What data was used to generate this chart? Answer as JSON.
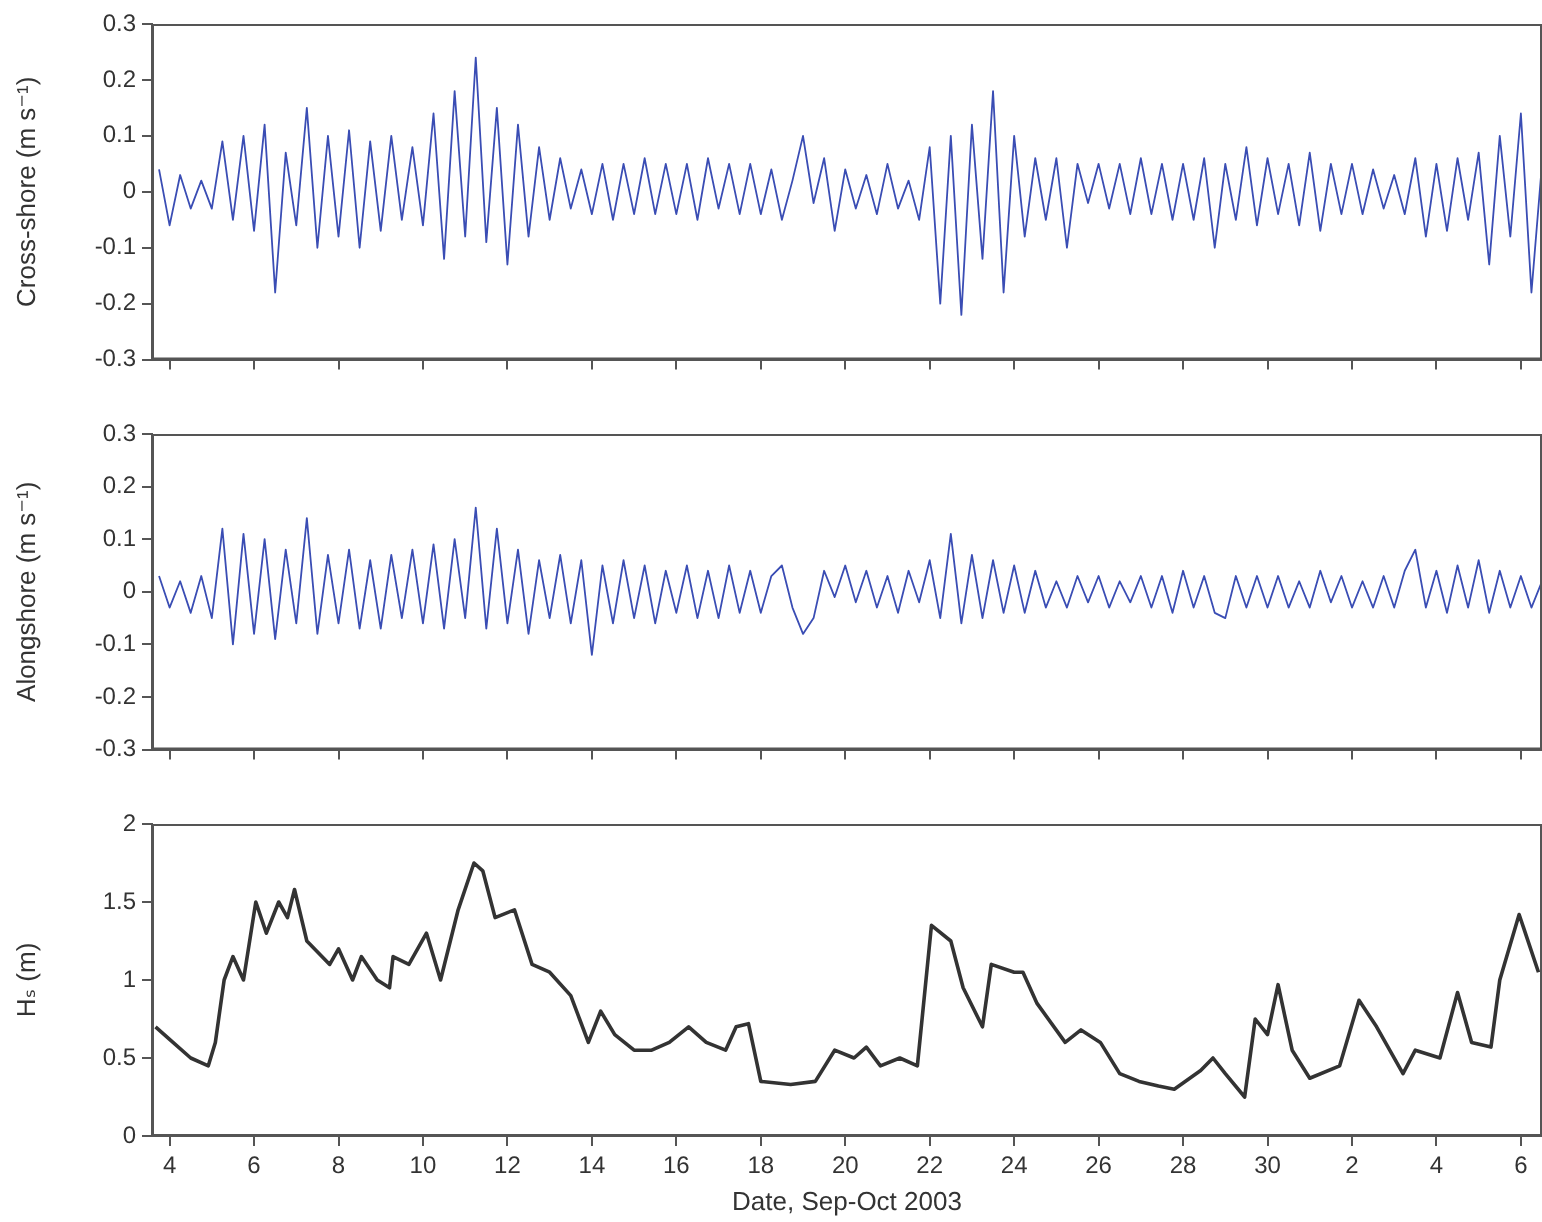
{
  "chart_data": [
    {
      "type": "line",
      "ylabel": "Cross-shore (m s⁻¹)",
      "tick_labels": "y",
      "grid": false,
      "xlim": [
        "2003-09-03T14:00",
        "2003-10-06T12:00"
      ],
      "xticks": [
        {
          "value": "2003-09-04",
          "label": null
        },
        {
          "value": "2003-09-06",
          "label": null
        },
        {
          "value": "2003-09-08",
          "label": null
        },
        {
          "value": "2003-09-10",
          "label": null
        },
        {
          "value": "2003-09-12",
          "label": null
        },
        {
          "value": "2003-09-14",
          "label": null
        },
        {
          "value": "2003-09-16",
          "label": null
        },
        {
          "value": "2003-09-18",
          "label": null
        },
        {
          "value": "2003-09-20",
          "label": null
        },
        {
          "value": "2003-09-22",
          "label": null
        },
        {
          "value": "2003-09-24",
          "label": null
        },
        {
          "value": "2003-09-26",
          "label": null
        },
        {
          "value": "2003-09-28",
          "label": null
        },
        {
          "value": "2003-09-30",
          "label": null
        },
        {
          "value": "2003-10-02",
          "label": null
        },
        {
          "value": "2003-10-04",
          "label": null
        },
        {
          "value": "2003-10-06",
          "label": null
        }
      ],
      "ylim": [
        -0.3,
        0.3
      ],
      "yticks": [
        -0.3,
        -0.2,
        -0.1,
        0,
        0.1,
        0.2,
        0.3
      ],
      "x": [
        "2003-09-03T18:00",
        "2003-09-04T00:00",
        "2003-09-04T06:00",
        "2003-09-04T12:00",
        "2003-09-04T18:00",
        "2003-09-05T00:00",
        "2003-09-05T06:00",
        "2003-09-05T12:00",
        "2003-09-05T18:00",
        "2003-09-06T00:00",
        "2003-09-06T06:00",
        "2003-09-06T12:00",
        "2003-09-06T18:00",
        "2003-09-07T00:00",
        "2003-09-07T06:00",
        "2003-09-07T12:00",
        "2003-09-07T18:00",
        "2003-09-08T00:00",
        "2003-09-08T06:00",
        "2003-09-08T12:00",
        "2003-09-08T18:00",
        "2003-09-09T00:00",
        "2003-09-09T06:00",
        "2003-09-09T12:00",
        "2003-09-09T18:00",
        "2003-09-10T00:00",
        "2003-09-10T06:00",
        "2003-09-10T12:00",
        "2003-09-10T18:00",
        "2003-09-11T00:00",
        "2003-09-11T06:00",
        "2003-09-11T12:00",
        "2003-09-11T18:00",
        "2003-09-12T00:00",
        "2003-09-12T06:00",
        "2003-09-12T12:00",
        "2003-09-12T18:00",
        "2003-09-13T00:00",
        "2003-09-13T06:00",
        "2003-09-13T12:00",
        "2003-09-13T18:00",
        "2003-09-14T00:00",
        "2003-09-14T06:00",
        "2003-09-14T12:00",
        "2003-09-14T18:00",
        "2003-09-15T00:00",
        "2003-09-15T06:00",
        "2003-09-15T12:00",
        "2003-09-15T18:00",
        "2003-09-16T00:00",
        "2003-09-16T06:00",
        "2003-09-16T12:00",
        "2003-09-16T18:00",
        "2003-09-17T00:00",
        "2003-09-17T06:00",
        "2003-09-17T12:00",
        "2003-09-17T18:00",
        "2003-09-18T00:00",
        "2003-09-18T06:00",
        "2003-09-18T12:00",
        "2003-09-18T18:00",
        "2003-09-19T00:00",
        "2003-09-19T06:00",
        "2003-09-19T12:00",
        "2003-09-19T18:00",
        "2003-09-20T00:00",
        "2003-09-20T06:00",
        "2003-09-20T12:00",
        "2003-09-20T18:00",
        "2003-09-21T00:00",
        "2003-09-21T06:00",
        "2003-09-21T12:00",
        "2003-09-21T18:00",
        "2003-09-22T00:00",
        "2003-09-22T06:00",
        "2003-09-22T12:00",
        "2003-09-22T18:00",
        "2003-09-23T00:00",
        "2003-09-23T06:00",
        "2003-09-23T12:00",
        "2003-09-23T18:00",
        "2003-09-24T00:00",
        "2003-09-24T06:00",
        "2003-09-24T12:00",
        "2003-09-24T18:00",
        "2003-09-25T00:00",
        "2003-09-25T06:00",
        "2003-09-25T12:00",
        "2003-09-25T18:00",
        "2003-09-26T00:00",
        "2003-09-26T06:00",
        "2003-09-26T12:00",
        "2003-09-26T18:00",
        "2003-09-27T00:00",
        "2003-09-27T06:00",
        "2003-09-27T12:00",
        "2003-09-27T18:00",
        "2003-09-28T00:00",
        "2003-09-28T06:00",
        "2003-09-28T12:00",
        "2003-09-28T18:00",
        "2003-09-29T00:00",
        "2003-09-29T06:00",
        "2003-09-29T12:00",
        "2003-09-29T18:00",
        "2003-09-30T00:00",
        "2003-09-30T06:00",
        "2003-09-30T12:00",
        "2003-09-30T18:00",
        "2003-10-01T00:00",
        "2003-10-01T06:00",
        "2003-10-01T12:00",
        "2003-10-01T18:00",
        "2003-10-02T00:00",
        "2003-10-02T06:00",
        "2003-10-02T12:00",
        "2003-10-02T18:00",
        "2003-10-03T00:00",
        "2003-10-03T06:00",
        "2003-10-03T12:00",
        "2003-10-03T18:00",
        "2003-10-04T00:00",
        "2003-10-04T06:00",
        "2003-10-04T12:00",
        "2003-10-04T18:00",
        "2003-10-05T00:00",
        "2003-10-05T06:00",
        "2003-10-05T12:00",
        "2003-10-05T18:00",
        "2003-10-06T00:00",
        "2003-10-06T06:00",
        "2003-10-06T12:00"
      ],
      "series": [
        {
          "color": "#3a4db4",
          "values": [
            0.04,
            -0.06,
            0.03,
            -0.03,
            0.02,
            -0.03,
            0.09,
            -0.05,
            0.1,
            -0.07,
            0.12,
            -0.18,
            0.07,
            -0.06,
            0.15,
            -0.1,
            0.1,
            -0.08,
            0.11,
            -0.1,
            0.09,
            -0.07,
            0.1,
            -0.05,
            0.08,
            -0.06,
            0.14,
            -0.12,
            0.18,
            -0.08,
            0.24,
            -0.09,
            0.15,
            -0.13,
            0.12,
            -0.08,
            0.08,
            -0.05,
            0.06,
            -0.03,
            0.04,
            -0.04,
            0.05,
            -0.05,
            0.05,
            -0.04,
            0.06,
            -0.04,
            0.05,
            -0.04,
            0.05,
            -0.05,
            0.06,
            -0.03,
            0.05,
            -0.04,
            0.05,
            -0.04,
            0.04,
            -0.05,
            0.02,
            0.1,
            -0.02,
            0.06,
            -0.07,
            0.04,
            -0.03,
            0.03,
            -0.04,
            0.05,
            -0.03,
            0.02,
            -0.05,
            0.08,
            -0.2,
            0.1,
            -0.22,
            0.12,
            -0.12,
            0.18,
            -0.18,
            0.1,
            -0.08,
            0.06,
            -0.05,
            0.06,
            -0.1,
            0.05,
            -0.02,
            0.05,
            -0.03,
            0.05,
            -0.04,
            0.06,
            -0.04,
            0.05,
            -0.05,
            0.05,
            -0.05,
            0.06,
            -0.1,
            0.05,
            -0.05,
            0.08,
            -0.06,
            0.06,
            -0.04,
            0.05,
            -0.06,
            0.07,
            -0.07,
            0.05,
            -0.04,
            0.05,
            -0.04,
            0.04,
            -0.03,
            0.03,
            -0.04,
            0.06,
            -0.08,
            0.05,
            -0.07,
            0.06,
            -0.05,
            0.07,
            -0.13,
            0.1,
            -0.08,
            0.14,
            -0.18,
            0.05
          ]
        }
      ]
    },
    {
      "type": "line",
      "ylabel": "Alongshore (m s⁻¹)",
      "tick_labels": "y",
      "grid": false,
      "xlim": [
        "2003-09-03T14:00",
        "2003-10-06T12:00"
      ],
      "xticks": [
        {
          "value": "2003-09-04",
          "label": null
        },
        {
          "value": "2003-09-06",
          "label": null
        },
        {
          "value": "2003-09-08",
          "label": null
        },
        {
          "value": "2003-09-10",
          "label": null
        },
        {
          "value": "2003-09-12",
          "label": null
        },
        {
          "value": "2003-09-14",
          "label": null
        },
        {
          "value": "2003-09-16",
          "label": null
        },
        {
          "value": "2003-09-18",
          "label": null
        },
        {
          "value": "2003-09-20",
          "label": null
        },
        {
          "value": "2003-09-22",
          "label": null
        },
        {
          "value": "2003-09-24",
          "label": null
        },
        {
          "value": "2003-09-26",
          "label": null
        },
        {
          "value": "2003-09-28",
          "label": null
        },
        {
          "value": "2003-09-30",
          "label": null
        },
        {
          "value": "2003-10-02",
          "label": null
        },
        {
          "value": "2003-10-04",
          "label": null
        },
        {
          "value": "2003-10-06",
          "label": null
        }
      ],
      "ylim": [
        -0.3,
        0.3
      ],
      "yticks": [
        -0.3,
        -0.2,
        -0.1,
        0,
        0.1,
        0.2,
        0.3
      ],
      "x": [
        "2003-09-03T18:00",
        "2003-09-04T00:00",
        "2003-09-04T06:00",
        "2003-09-04T12:00",
        "2003-09-04T18:00",
        "2003-09-05T00:00",
        "2003-09-05T06:00",
        "2003-09-05T12:00",
        "2003-09-05T18:00",
        "2003-09-06T00:00",
        "2003-09-06T06:00",
        "2003-09-06T12:00",
        "2003-09-06T18:00",
        "2003-09-07T00:00",
        "2003-09-07T06:00",
        "2003-09-07T12:00",
        "2003-09-07T18:00",
        "2003-09-08T00:00",
        "2003-09-08T06:00",
        "2003-09-08T12:00",
        "2003-09-08T18:00",
        "2003-09-09T00:00",
        "2003-09-09T06:00",
        "2003-09-09T12:00",
        "2003-09-09T18:00",
        "2003-09-10T00:00",
        "2003-09-10T06:00",
        "2003-09-10T12:00",
        "2003-09-10T18:00",
        "2003-09-11T00:00",
        "2003-09-11T06:00",
        "2003-09-11T12:00",
        "2003-09-11T18:00",
        "2003-09-12T00:00",
        "2003-09-12T06:00",
        "2003-09-12T12:00",
        "2003-09-12T18:00",
        "2003-09-13T00:00",
        "2003-09-13T06:00",
        "2003-09-13T12:00",
        "2003-09-13T18:00",
        "2003-09-14T00:00",
        "2003-09-14T06:00",
        "2003-09-14T12:00",
        "2003-09-14T18:00",
        "2003-09-15T00:00",
        "2003-09-15T06:00",
        "2003-09-15T12:00",
        "2003-09-15T18:00",
        "2003-09-16T00:00",
        "2003-09-16T06:00",
        "2003-09-16T12:00",
        "2003-09-16T18:00",
        "2003-09-17T00:00",
        "2003-09-17T06:00",
        "2003-09-17T12:00",
        "2003-09-17T18:00",
        "2003-09-18T00:00",
        "2003-09-18T06:00",
        "2003-09-18T12:00",
        "2003-09-18T18:00",
        "2003-09-19T00:00",
        "2003-09-19T06:00",
        "2003-09-19T12:00",
        "2003-09-19T18:00",
        "2003-09-20T00:00",
        "2003-09-20T06:00",
        "2003-09-20T12:00",
        "2003-09-20T18:00",
        "2003-09-21T00:00",
        "2003-09-21T06:00",
        "2003-09-21T12:00",
        "2003-09-21T18:00",
        "2003-09-22T00:00",
        "2003-09-22T06:00",
        "2003-09-22T12:00",
        "2003-09-22T18:00",
        "2003-09-23T00:00",
        "2003-09-23T06:00",
        "2003-09-23T12:00",
        "2003-09-23T18:00",
        "2003-09-24T00:00",
        "2003-09-24T06:00",
        "2003-09-24T12:00",
        "2003-09-24T18:00",
        "2003-09-25T00:00",
        "2003-09-25T06:00",
        "2003-09-25T12:00",
        "2003-09-25T18:00",
        "2003-09-26T00:00",
        "2003-09-26T06:00",
        "2003-09-26T12:00",
        "2003-09-26T18:00",
        "2003-09-27T00:00",
        "2003-09-27T06:00",
        "2003-09-27T12:00",
        "2003-09-27T18:00",
        "2003-09-28T00:00",
        "2003-09-28T06:00",
        "2003-09-28T12:00",
        "2003-09-28T18:00",
        "2003-09-29T00:00",
        "2003-09-29T06:00",
        "2003-09-29T12:00",
        "2003-09-29T18:00",
        "2003-09-30T00:00",
        "2003-09-30T06:00",
        "2003-09-30T12:00",
        "2003-09-30T18:00",
        "2003-10-01T00:00",
        "2003-10-01T06:00",
        "2003-10-01T12:00",
        "2003-10-01T18:00",
        "2003-10-02T00:00",
        "2003-10-02T06:00",
        "2003-10-02T12:00",
        "2003-10-02T18:00",
        "2003-10-03T00:00",
        "2003-10-03T06:00",
        "2003-10-03T12:00",
        "2003-10-03T18:00",
        "2003-10-04T00:00",
        "2003-10-04T06:00",
        "2003-10-04T12:00",
        "2003-10-04T18:00",
        "2003-10-05T00:00",
        "2003-10-05T06:00",
        "2003-10-05T12:00",
        "2003-10-05T18:00",
        "2003-10-06T00:00",
        "2003-10-06T06:00",
        "2003-10-06T12:00"
      ],
      "series": [
        {
          "color": "#3a4db4",
          "values": [
            0.03,
            -0.03,
            0.02,
            -0.04,
            0.03,
            -0.05,
            0.12,
            -0.1,
            0.11,
            -0.08,
            0.1,
            -0.09,
            0.08,
            -0.06,
            0.14,
            -0.08,
            0.07,
            -0.06,
            0.08,
            -0.07,
            0.06,
            -0.07,
            0.07,
            -0.05,
            0.08,
            -0.06,
            0.09,
            -0.07,
            0.1,
            -0.05,
            0.16,
            -0.07,
            0.12,
            -0.06,
            0.08,
            -0.08,
            0.06,
            -0.05,
            0.07,
            -0.06,
            0.06,
            -0.12,
            0.05,
            -0.06,
            0.06,
            -0.05,
            0.05,
            -0.06,
            0.04,
            -0.04,
            0.05,
            -0.05,
            0.04,
            -0.05,
            0.05,
            -0.04,
            0.04,
            -0.04,
            0.03,
            0.05,
            -0.03,
            -0.08,
            -0.05,
            0.04,
            -0.01,
            0.05,
            -0.02,
            0.04,
            -0.03,
            0.03,
            -0.04,
            0.04,
            -0.02,
            0.06,
            -0.05,
            0.11,
            -0.06,
            0.07,
            -0.05,
            0.06,
            -0.04,
            0.05,
            -0.04,
            0.04,
            -0.03,
            0.02,
            -0.03,
            0.03,
            -0.02,
            0.03,
            -0.03,
            0.02,
            -0.02,
            0.03,
            -0.03,
            0.03,
            -0.04,
            0.04,
            -0.03,
            0.03,
            -0.04,
            -0.05,
            0.03,
            -0.03,
            0.03,
            -0.03,
            0.03,
            -0.03,
            0.02,
            -0.03,
            0.04,
            -0.02,
            0.03,
            -0.03,
            0.02,
            -0.03,
            0.03,
            -0.03,
            0.04,
            0.08,
            -0.03,
            0.04,
            -0.04,
            0.05,
            -0.03,
            0.06,
            -0.04,
            0.04,
            -0.03,
            0.03,
            -0.03,
            0.02
          ]
        }
      ]
    },
    {
      "type": "line",
      "ylabel": "Hₛ (m)",
      "xlabel": "Date, Sep-Oct 2003",
      "grid": false,
      "xlim": [
        "2003-09-03T14:00",
        "2003-10-06T12:00"
      ],
      "xticks": [
        {
          "value": "2003-09-04",
          "label": "4"
        },
        {
          "value": "2003-09-06",
          "label": "6"
        },
        {
          "value": "2003-09-08",
          "label": "8"
        },
        {
          "value": "2003-09-10",
          "label": "10"
        },
        {
          "value": "2003-09-12",
          "label": "12"
        },
        {
          "value": "2003-09-14",
          "label": "14"
        },
        {
          "value": "2003-09-16",
          "label": "16"
        },
        {
          "value": "2003-09-18",
          "label": "18"
        },
        {
          "value": "2003-09-20",
          "label": "20"
        },
        {
          "value": "2003-09-22",
          "label": "22"
        },
        {
          "value": "2003-09-24",
          "label": "24"
        },
        {
          "value": "2003-09-26",
          "label": "26"
        },
        {
          "value": "2003-09-28",
          "label": "28"
        },
        {
          "value": "2003-09-30",
          "label": "30"
        },
        {
          "value": "2003-10-02",
          "label": "2"
        },
        {
          "value": "2003-10-04",
          "label": "4"
        },
        {
          "value": "2003-10-06",
          "label": "6"
        }
      ],
      "ylim": [
        0,
        2
      ],
      "yticks": [
        0,
        0.5,
        1,
        1.5,
        2
      ],
      "x": [
        "2003-09-03T16:00",
        "2003-09-04T00:00",
        "2003-09-04T12:00",
        "2003-09-04T22:00",
        "2003-09-05T02:00",
        "2003-09-05T07:00",
        "2003-09-05T12:00",
        "2003-09-05T18:00",
        "2003-09-06T01:00",
        "2003-09-06T07:00",
        "2003-09-06T14:00",
        "2003-09-06T19:00",
        "2003-09-06T23:00",
        "2003-09-07T06:00",
        "2003-09-07T19:00",
        "2003-09-08T00:00",
        "2003-09-08T08:00",
        "2003-09-08T13:00",
        "2003-09-08T22:00",
        "2003-09-09T05:00",
        "2003-09-09T07:00",
        "2003-09-09T16:00",
        "2003-09-10T02:00",
        "2003-09-10T10:00",
        "2003-09-10T20:00",
        "2003-09-11T05:00",
        "2003-09-11T10:00",
        "2003-09-11T17:00",
        "2003-09-12T04:00",
        "2003-09-12T14:00",
        "2003-09-13T00:00",
        "2003-09-13T12:00",
        "2003-09-13T17:00",
        "2003-09-13T22:00",
        "2003-09-14T05:00",
        "2003-09-14T13:00",
        "2003-09-15T00:00",
        "2003-09-15T10:00",
        "2003-09-15T20:00",
        "2003-09-16T07:00",
        "2003-09-16T17:00",
        "2003-09-17T04:00",
        "2003-09-17T10:00",
        "2003-09-17T17:00",
        "2003-09-18T00:00",
        "2003-09-18T17:00",
        "2003-09-19T07:00",
        "2003-09-19T18:00",
        "2003-09-20T05:00",
        "2003-09-20T12:00",
        "2003-09-20T20:00",
        "2003-09-21T07:00",
        "2003-09-21T17:00",
        "2003-09-22T01:00",
        "2003-09-22T12:00",
        "2003-09-22T19:00",
        "2003-09-23T06:00",
        "2003-09-23T11:00",
        "2003-09-24T00:00",
        "2003-09-24T05:00",
        "2003-09-24T13:00",
        "2003-09-25T05:00",
        "2003-09-25T14:00",
        "2003-09-26T01:00",
        "2003-09-26T12:00",
        "2003-09-26T23:00",
        "2003-09-27T10:00",
        "2003-09-27T19:00",
        "2003-09-28T10:00",
        "2003-09-28T17:00",
        "2003-09-29T00:00",
        "2003-09-29T11:00",
        "2003-09-29T17:00",
        "2003-09-30T00:00",
        "2003-09-30T06:00",
        "2003-09-30T14:00",
        "2003-10-01T00:00",
        "2003-10-01T17:00",
        "2003-10-02T04:00",
        "2003-10-02T14:00",
        "2003-10-03T05:00",
        "2003-10-03T12:00",
        "2003-10-04T02:00",
        "2003-10-04T12:00",
        "2003-10-04T20:00",
        "2003-10-05T07:00",
        "2003-10-05T12:00",
        "2003-10-05T23:00",
        "2003-10-06T10:00"
      ],
      "series": [
        {
          "color": "#333333",
          "values": [
            0.7,
            0.62,
            0.5,
            0.45,
            0.6,
            1.0,
            1.15,
            1.0,
            1.5,
            1.3,
            1.5,
            1.4,
            1.58,
            1.25,
            1.1,
            1.2,
            1.0,
            1.15,
            1.0,
            0.95,
            1.15,
            1.1,
            1.3,
            1.0,
            1.45,
            1.75,
            1.7,
            1.4,
            1.45,
            1.1,
            1.05,
            0.9,
            0.75,
            0.6,
            0.8,
            0.65,
            0.55,
            0.55,
            0.6,
            0.7,
            0.6,
            0.55,
            0.7,
            0.72,
            0.35,
            0.33,
            0.35,
            0.55,
            0.5,
            0.57,
            0.45,
            0.5,
            0.45,
            1.35,
            1.25,
            0.95,
            0.7,
            1.1,
            1.05,
            1.05,
            0.85,
            0.6,
            0.68,
            0.6,
            0.4,
            0.35,
            0.32,
            0.3,
            0.42,
            0.5,
            0.4,
            0.25,
            0.75,
            0.65,
            0.97,
            0.55,
            0.37,
            0.45,
            0.87,
            0.7,
            0.4,
            0.55,
            0.5,
            0.92,
            0.6,
            0.57,
            1.0,
            1.42,
            1.05
          ]
        }
      ]
    }
  ]
}
